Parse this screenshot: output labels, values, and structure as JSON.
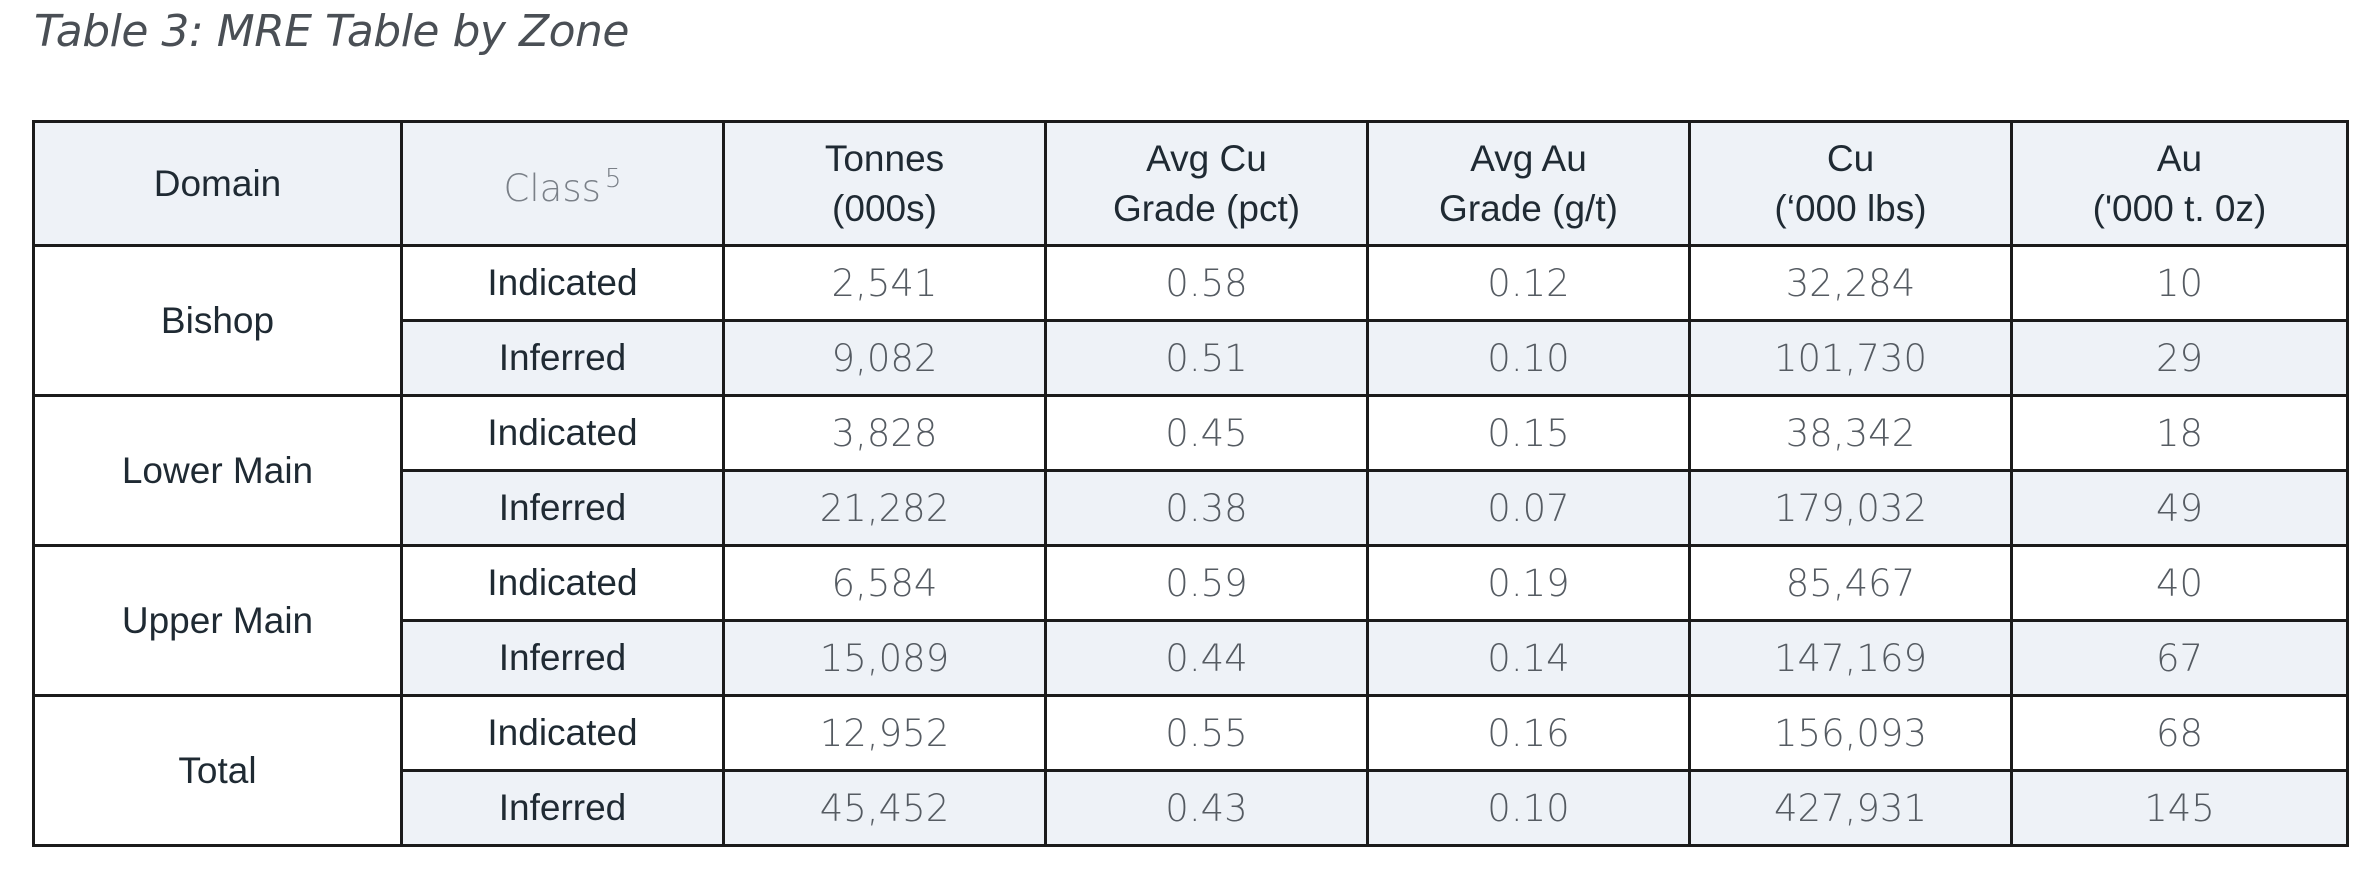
{
  "caption": "Table 3: MRE Table by Zone",
  "headers": {
    "domain": "Domain",
    "class": "Class",
    "class_sup": "5",
    "tonnes_1": "Tonnes",
    "tonnes_2": "(000s)",
    "cu_grade_1": "Avg Cu",
    "cu_grade_2": "Grade (pct)",
    "au_grade_1": "Avg Au",
    "au_grade_2": "Grade (g/t)",
    "cu_lbs_1": "Cu",
    "cu_lbs_2": "(‘000 lbs)",
    "au_oz_1": "Au",
    "au_oz_2": "('000 t. 0z)"
  },
  "groups": [
    {
      "domain": "Bishop",
      "rows": [
        {
          "class": "Indicated",
          "tonnes": "2,541",
          "cu_grade": "0.58",
          "au_grade": "0.12",
          "cu_lbs": "32,284",
          "au_oz": "10"
        },
        {
          "class": "Inferred",
          "tonnes": "9,082",
          "cu_grade": "0.51",
          "au_grade": "0.10",
          "cu_lbs": "101,730",
          "au_oz": "29"
        }
      ]
    },
    {
      "domain": "Lower Main",
      "rows": [
        {
          "class": "Indicated",
          "tonnes": "3,828",
          "cu_grade": "0.45",
          "au_grade": "0.15",
          "cu_lbs": "38,342",
          "au_oz": "18"
        },
        {
          "class": "Inferred",
          "tonnes": "21,282",
          "cu_grade": "0.38",
          "au_grade": "0.07",
          "cu_lbs": "179,032",
          "au_oz": "49"
        }
      ]
    },
    {
      "domain": "Upper Main",
      "rows": [
        {
          "class": "Indicated",
          "tonnes": "6,584",
          "cu_grade": "0.59",
          "au_grade": "0.19",
          "cu_lbs": "85,467",
          "au_oz": "40"
        },
        {
          "class": "Inferred",
          "tonnes": "15,089",
          "cu_grade": "0.44",
          "au_grade": "0.14",
          "cu_lbs": "147,169",
          "au_oz": "67"
        }
      ]
    },
    {
      "domain": "Total",
      "rows": [
        {
          "class": "Indicated",
          "tonnes": "12,952",
          "cu_grade": "0.55",
          "au_grade": "0.16",
          "cu_lbs": "156,093",
          "au_oz": "68"
        },
        {
          "class": "Inferred",
          "tonnes": "45,452",
          "cu_grade": "0.43",
          "au_grade": "0.10",
          "cu_lbs": "427,931",
          "au_oz": "145"
        }
      ]
    }
  ]
}
